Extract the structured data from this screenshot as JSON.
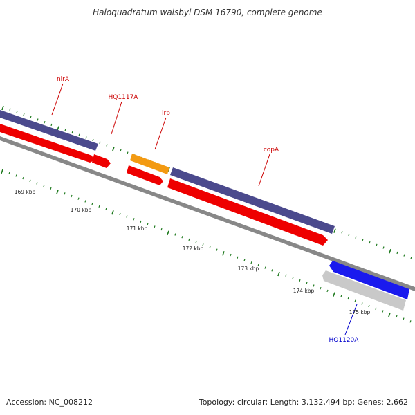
{
  "title": "Haloquadratum walsbyi DSM 16790, complete genome",
  "footer": {
    "accession": "Accession: NC_008212",
    "summary": "Topology: circular; Length: 3,132,494 bp; Genes: 2,662"
  },
  "colors": {
    "gene_purple": "#4b4a8d",
    "cds_red": "#ee0000",
    "trna_orange": "#f39a12",
    "gene_blue": "#1a1aee",
    "cds_grey": "#c9c9c9",
    "backbone": "#888888",
    "tick_green": "#1f7a1f",
    "label_red": "#cc0000",
    "label_blue": "#0000cc"
  },
  "scale": {
    "labels": [
      "169 kbp",
      "170 kbp",
      "171 kbp",
      "172 kbp",
      "173 kbp",
      "174 kbp",
      "175 kbp"
    ]
  },
  "genes": [
    {
      "name": "nirA"
    },
    {
      "name": "HQ1117A"
    },
    {
      "name": "lrp"
    },
    {
      "name": "copA"
    },
    {
      "name": "HQ1120A"
    }
  ]
}
